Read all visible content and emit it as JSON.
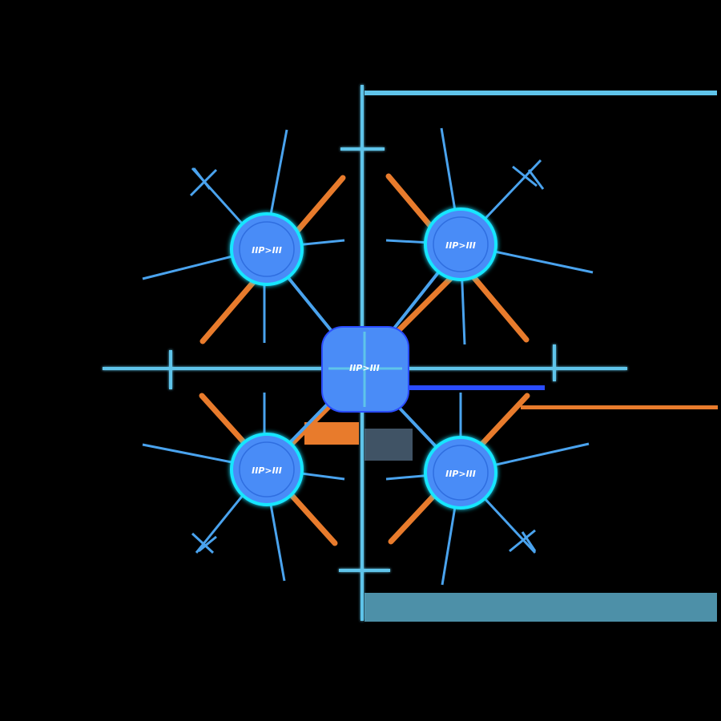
{
  "graphic": {
    "nodes": [
      {
        "id": "center",
        "label": "IIP>III"
      },
      {
        "id": "top-left",
        "label": "IIP>III"
      },
      {
        "id": "top-right",
        "label": "IIP>III"
      },
      {
        "id": "bottom-left",
        "label": "IIP>III"
      },
      {
        "id": "bottom-right",
        "label": "IIP>III"
      }
    ],
    "colors": {
      "background": "#000000",
      "node_fill": "#4a8cf7",
      "node_glow": "#19e6ff",
      "spoke_blue": "#4aa3ee",
      "spoke_orange": "#e87b2c",
      "axis_cyan": "#5fc4ea",
      "label": "#ffffff"
    }
  }
}
